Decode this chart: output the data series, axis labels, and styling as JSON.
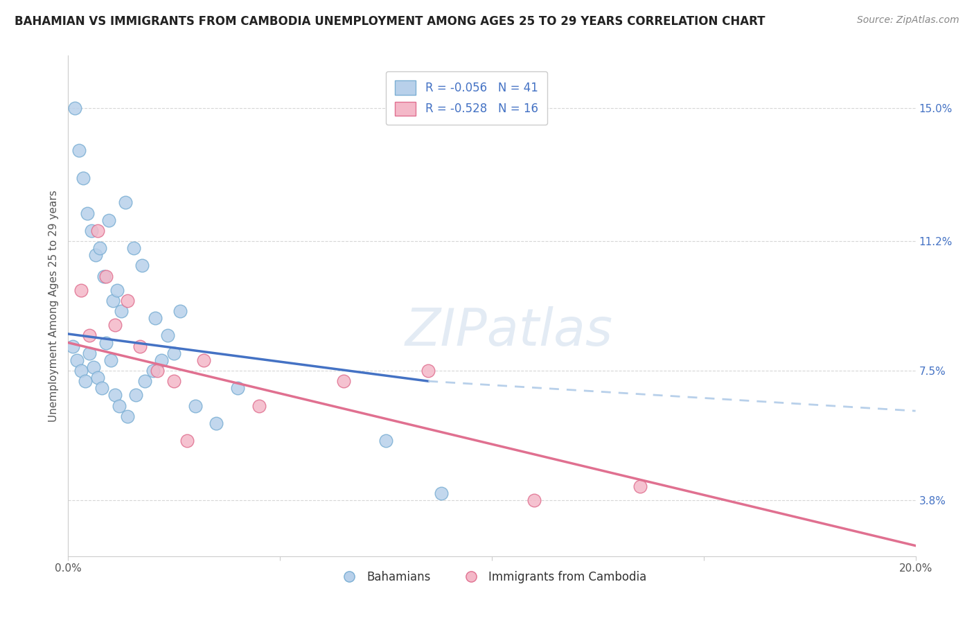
{
  "title": "BAHAMIAN VS IMMIGRANTS FROM CAMBODIA UNEMPLOYMENT AMONG AGES 25 TO 29 YEARS CORRELATION CHART",
  "source_text": "Source: ZipAtlas.com",
  "ylabel": "Unemployment Among Ages 25 to 29 years",
  "x_min": 0.0,
  "x_max": 20.0,
  "y_min": 2.2,
  "y_max": 16.5,
  "x_ticks": [
    0.0,
    5.0,
    10.0,
    15.0,
    20.0
  ],
  "x_tick_labels": [
    "0.0%",
    "",
    "",
    "",
    "20.0%"
  ],
  "y_ticks": [
    3.8,
    7.5,
    11.2,
    15.0
  ],
  "y_tick_labels": [
    "3.8%",
    "7.5%",
    "11.2%",
    "15.0%"
  ],
  "grid_color": "#cccccc",
  "background_color": "#ffffff",
  "watermark": "ZIPatlas",
  "series_blue": {
    "name": "Bahamians",
    "color": "#b8d0ea",
    "edge_color": "#7bafd4",
    "line_color": "#4472c4",
    "line_x0": 0.0,
    "line_y0": 8.55,
    "line_x1": 8.5,
    "line_y1": 7.2,
    "dash_x0": 8.5,
    "dash_y0": 7.2,
    "dash_x1": 20.0,
    "dash_y1": 6.35,
    "scatter_x": [
      0.15,
      0.25,
      0.35,
      0.45,
      0.55,
      0.65,
      0.75,
      0.85,
      0.95,
      1.05,
      1.15,
      1.25,
      1.35,
      1.55,
      1.75,
      2.05,
      2.35,
      2.65,
      0.1,
      0.2,
      0.3,
      0.4,
      0.5,
      0.6,
      0.7,
      0.8,
      0.9,
      1.0,
      1.1,
      1.2,
      1.4,
      1.6,
      1.8,
      2.0,
      2.2,
      2.5,
      3.0,
      3.5,
      4.0,
      7.5,
      8.8
    ],
    "scatter_y": [
      15.0,
      13.8,
      13.0,
      12.0,
      11.5,
      10.8,
      11.0,
      10.2,
      11.8,
      9.5,
      9.8,
      9.2,
      12.3,
      11.0,
      10.5,
      9.0,
      8.5,
      9.2,
      8.2,
      7.8,
      7.5,
      7.2,
      8.0,
      7.6,
      7.3,
      7.0,
      8.3,
      7.8,
      6.8,
      6.5,
      6.2,
      6.8,
      7.2,
      7.5,
      7.8,
      8.0,
      6.5,
      6.0,
      7.0,
      5.5,
      4.0
    ]
  },
  "series_pink": {
    "name": "Immigrants from Cambodia",
    "color": "#f4b8c8",
    "edge_color": "#e07090",
    "line_color": "#e07090",
    "line_x0": 0.0,
    "line_y0": 8.3,
    "line_x1": 20.0,
    "line_y1": 2.5,
    "scatter_x": [
      0.3,
      0.5,
      0.7,
      0.9,
      1.1,
      1.4,
      1.7,
      2.1,
      2.5,
      3.2,
      4.5,
      6.5,
      8.5,
      11.0,
      13.5,
      2.8
    ],
    "scatter_y": [
      9.8,
      8.5,
      11.5,
      10.2,
      8.8,
      9.5,
      8.2,
      7.5,
      7.2,
      7.8,
      6.5,
      7.2,
      7.5,
      3.8,
      4.2,
      5.5
    ]
  },
  "legend_blue_text": "R = -0.056   N = 41",
  "legend_pink_text": "R = -0.528   N = 16",
  "legend_text_color": "#4472c4",
  "title_fontsize": 12,
  "source_fontsize": 10,
  "axis_tick_fontsize": 11,
  "ylabel_fontsize": 11
}
